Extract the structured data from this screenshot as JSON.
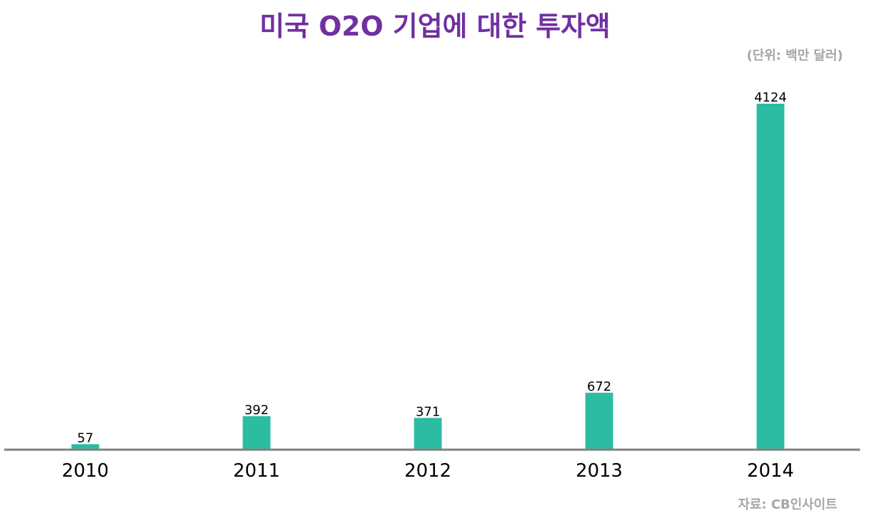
{
  "title": "미국 O2O 기업에 대한 투자액",
  "unit_note": "(단위: 백만 달러)",
  "source_note": "자료: CB인사이트",
  "colors": {
    "title": "#7030a0",
    "bar": "#2bbca2",
    "axis": "#808080",
    "note": "#a6a6a6"
  },
  "chart_data": {
    "type": "bar",
    "categories": [
      "2010",
      "2011",
      "2012",
      "2013",
      "2014"
    ],
    "values": [
      57,
      392,
      371,
      672,
      4124
    ],
    "data_labels": [
      "57",
      "392",
      "371",
      "672",
      "4124"
    ],
    "title": "미국 O2O 기업에 대한 투자액",
    "xlabel": "",
    "ylabel": "",
    "ylim": [
      0,
      4124
    ],
    "grid": false,
    "legend": "none"
  }
}
